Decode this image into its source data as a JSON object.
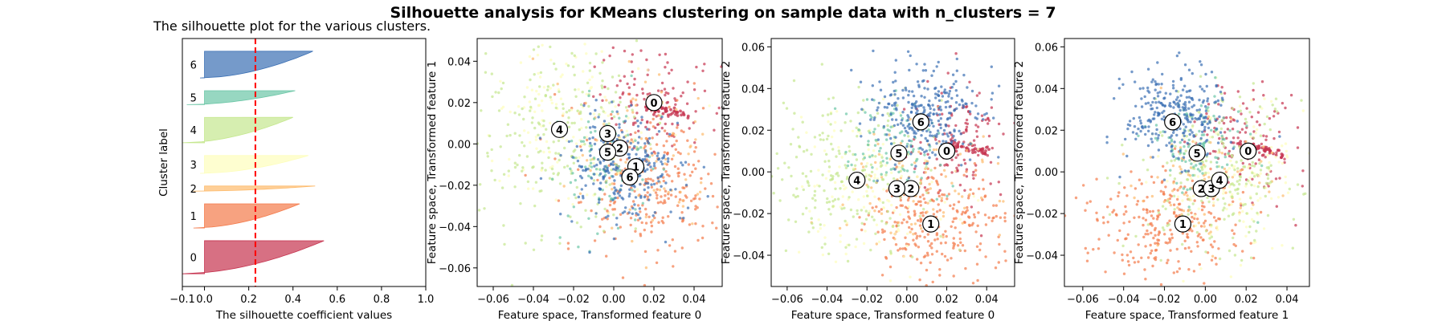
{
  "figure": {
    "suptitle": "Silhouette analysis for KMeans clustering on sample data with n_clusters = 7"
  },
  "chart_data": [
    {
      "type": "area",
      "title": "The silhouette plot for the various clusters.",
      "xlabel": "The silhouette coefficient values",
      "ylabel": "Cluster label",
      "xlim": [
        -0.1,
        1.0
      ],
      "xticks": [
        "−0.1",
        "0.0",
        "0.2",
        "0.4",
        "0.6",
        "0.8",
        "1.0"
      ],
      "xtick_values": [
        -0.1,
        0.0,
        0.2,
        0.4,
        0.6,
        0.8,
        1.0
      ],
      "average_silhouette": 0.23,
      "average_line_color": "#ff0000",
      "clusters": [
        {
          "label": "0",
          "size": 26,
          "max": 0.54,
          "min": -0.1,
          "color": "#c6334f"
        },
        {
          "label": "1",
          "size": 19,
          "max": 0.43,
          "min": -0.05,
          "color": "#f47a4a"
        },
        {
          "label": "2",
          "size": 4,
          "max": 0.5,
          "min": -0.05,
          "color": "#fdbb6c"
        },
        {
          "label": "3",
          "size": 14,
          "max": 0.47,
          "min": -0.02,
          "color": "#fdfebc"
        },
        {
          "label": "4",
          "size": 20,
          "max": 0.4,
          "min": -0.1,
          "color": "#c5e78e"
        },
        {
          "label": "5",
          "size": 11,
          "max": 0.41,
          "min": -0.08,
          "color": "#6bc6a6"
        },
        {
          "label": "6",
          "size": 21,
          "max": 0.49,
          "min": -0.02,
          "color": "#3a6fb4"
        }
      ]
    },
    {
      "type": "scatter",
      "xlabel": "Feature space, Transformed feature 0",
      "ylabel": "Feature space, Transformed feature 1",
      "xlim": [
        -0.068,
        0.054
      ],
      "ylim": [
        -0.069,
        0.051
      ],
      "xticks": [
        "−0.06",
        "−0.04",
        "−0.02",
        "0.00",
        "0.02",
        "0.04"
      ],
      "xtick_values": [
        -0.06,
        -0.04,
        -0.02,
        0.0,
        0.02,
        0.04
      ],
      "yticks": [
        "−0.06",
        "−0.04",
        "−0.02",
        "0.00",
        "0.02",
        "0.04"
      ],
      "ytick_values": [
        -0.06,
        -0.04,
        -0.02,
        0.0,
        0.02,
        0.04
      ],
      "centers": [
        {
          "label": "0",
          "x": 0.02,
          "y": 0.02
        },
        {
          "label": "1",
          "x": 0.011,
          "y": -0.011
        },
        {
          "label": "2",
          "x": 0.003,
          "y": -0.002
        },
        {
          "label": "3",
          "x": -0.003,
          "y": 0.005
        },
        {
          "label": "4",
          "x": -0.027,
          "y": 0.007
        },
        {
          "label": "5",
          "x": -0.003,
          "y": -0.004
        },
        {
          "label": "6",
          "x": 0.008,
          "y": -0.016
        }
      ],
      "cloud": [
        {
          "cluster": "0",
          "cx": 0.02,
          "cy": 0.02,
          "sx": 0.014,
          "sy": 0.012,
          "n": 130,
          "tail": true
        },
        {
          "cluster": "1",
          "cx": 0.018,
          "cy": -0.02,
          "sx": 0.018,
          "sy": 0.018,
          "n": 260
        },
        {
          "cluster": "2",
          "cx": 0.01,
          "cy": -0.004,
          "sx": 0.02,
          "sy": 0.02,
          "n": 90
        },
        {
          "cluster": "3",
          "cx": -0.02,
          "cy": 0.01,
          "sx": 0.02,
          "sy": 0.02,
          "n": 140
        },
        {
          "cluster": "4",
          "cx": -0.03,
          "cy": 0.005,
          "sx": 0.02,
          "sy": 0.022,
          "n": 220
        },
        {
          "cluster": "5",
          "cx": -0.005,
          "cy": -0.01,
          "sx": 0.012,
          "sy": 0.014,
          "n": 100
        },
        {
          "cluster": "6",
          "cx": 0.005,
          "cy": -0.012,
          "sx": 0.015,
          "sy": 0.012,
          "n": 280
        }
      ]
    },
    {
      "type": "scatter",
      "xlabel": "Feature space, Transformed feature 0",
      "ylabel": "Feature space, Transformed feature 2",
      "xlim": [
        -0.068,
        0.054
      ],
      "ylim": [
        -0.055,
        0.064
      ],
      "xticks": [
        "−0.06",
        "−0.04",
        "−0.02",
        "0.00",
        "0.02",
        "0.04"
      ],
      "xtick_values": [
        -0.06,
        -0.04,
        -0.02,
        0.0,
        0.02,
        0.04
      ],
      "yticks": [
        "−0.04",
        "−0.02",
        "0.00",
        "0.02",
        "0.04",
        "0.06"
      ],
      "ytick_values": [
        -0.04,
        -0.02,
        0.0,
        0.02,
        0.04,
        0.06
      ],
      "centers": [
        {
          "label": "0",
          "x": 0.02,
          "y": 0.01
        },
        {
          "label": "1",
          "x": 0.012,
          "y": -0.025
        },
        {
          "label": "2",
          "x": 0.002,
          "y": -0.008
        },
        {
          "label": "3",
          "x": -0.005,
          "y": -0.008
        },
        {
          "label": "4",
          "x": -0.025,
          "y": -0.004
        },
        {
          "label": "5",
          "x": -0.004,
          "y": 0.009
        },
        {
          "label": "6",
          "x": 0.007,
          "y": 0.024
        }
      ],
      "cloud": [
        {
          "cluster": "0",
          "cx": 0.025,
          "cy": 0.015,
          "sx": 0.012,
          "sy": 0.014,
          "n": 130,
          "tail": true
        },
        {
          "cluster": "1",
          "cx": 0.015,
          "cy": -0.025,
          "sx": 0.018,
          "sy": 0.013,
          "n": 260
        },
        {
          "cluster": "2",
          "cx": 0.005,
          "cy": -0.008,
          "sx": 0.02,
          "sy": 0.015,
          "n": 90
        },
        {
          "cluster": "3",
          "cx": -0.02,
          "cy": -0.005,
          "sx": 0.02,
          "sy": 0.02,
          "n": 140
        },
        {
          "cluster": "4",
          "cx": -0.028,
          "cy": 0.0,
          "sx": 0.02,
          "sy": 0.018,
          "n": 220
        },
        {
          "cluster": "5",
          "cx": -0.008,
          "cy": 0.012,
          "sx": 0.012,
          "sy": 0.012,
          "n": 100
        },
        {
          "cluster": "6",
          "cx": 0.01,
          "cy": 0.027,
          "sx": 0.013,
          "sy": 0.011,
          "n": 280
        }
      ]
    },
    {
      "type": "scatter",
      "xlabel": "Feature space, Transformed feature 1",
      "ylabel": "Feature space, Transformed feature 2",
      "xlim": [
        -0.069,
        0.051
      ],
      "ylim": [
        -0.055,
        0.064
      ],
      "xticks": [
        "−0.06",
        "−0.04",
        "−0.02",
        "0.00",
        "0.02",
        "0.04"
      ],
      "xtick_values": [
        -0.06,
        -0.04,
        -0.02,
        0.0,
        0.02,
        0.04
      ],
      "yticks": [
        "−0.04",
        "−0.02",
        "0.00",
        "0.02",
        "0.04",
        "0.06"
      ],
      "ytick_values": [
        -0.04,
        -0.02,
        0.0,
        0.02,
        0.04,
        0.06
      ],
      "centers": [
        {
          "label": "0",
          "x": 0.021,
          "y": 0.01
        },
        {
          "label": "1",
          "x": -0.011,
          "y": -0.025
        },
        {
          "label": "2",
          "x": -0.002,
          "y": -0.008
        },
        {
          "label": "3",
          "x": 0.003,
          "y": -0.008
        },
        {
          "label": "4",
          "x": 0.007,
          "y": -0.004
        },
        {
          "label": "5",
          "x": -0.004,
          "y": 0.009
        },
        {
          "label": "6",
          "x": -0.016,
          "y": 0.024
        }
      ],
      "cloud": [
        {
          "cluster": "0",
          "cx": 0.02,
          "cy": 0.015,
          "sx": 0.013,
          "sy": 0.014,
          "n": 130,
          "tail": true
        },
        {
          "cluster": "1",
          "cx": -0.02,
          "cy": -0.025,
          "sx": 0.018,
          "sy": 0.013,
          "n": 260
        },
        {
          "cluster": "2",
          "cx": -0.003,
          "cy": -0.008,
          "sx": 0.02,
          "sy": 0.015,
          "n": 90
        },
        {
          "cluster": "3",
          "cx": 0.01,
          "cy": -0.005,
          "sx": 0.02,
          "sy": 0.02,
          "n": 140
        },
        {
          "cluster": "4",
          "cx": 0.008,
          "cy": 0.0,
          "sx": 0.02,
          "sy": 0.018,
          "n": 220
        },
        {
          "cluster": "5",
          "cx": -0.005,
          "cy": 0.012,
          "sx": 0.012,
          "sy": 0.012,
          "n": 100
        },
        {
          "cluster": "6",
          "cx": -0.015,
          "cy": 0.027,
          "sx": 0.012,
          "sy": 0.011,
          "n": 280
        }
      ]
    }
  ]
}
